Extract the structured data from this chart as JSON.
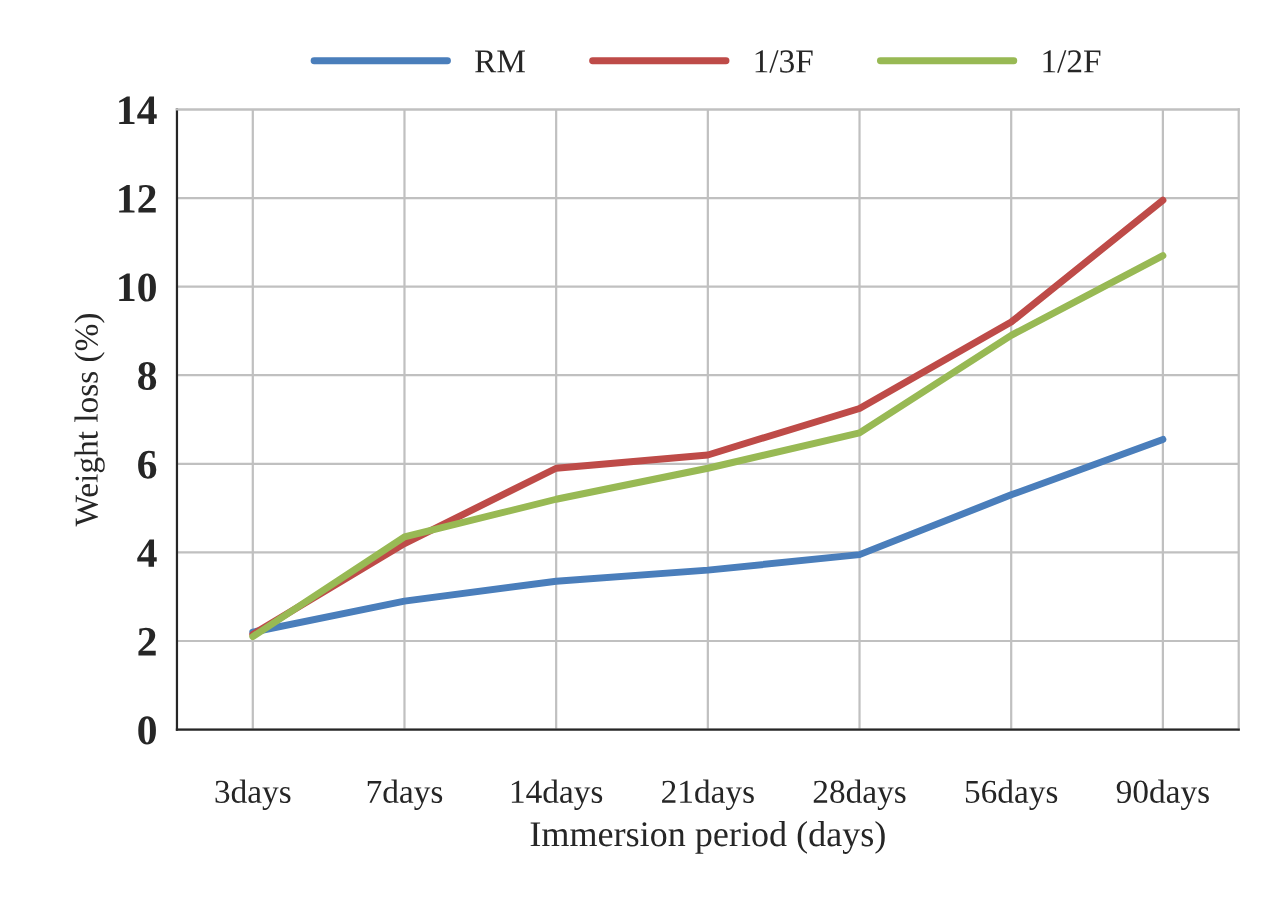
{
  "chart_data": {
    "type": "line",
    "xlabel": "Immersion period (days)",
    "ylabel": "Weight loss (%)",
    "categories": [
      "3days",
      "7days",
      "14days",
      "21days",
      "28days",
      "56days",
      "90days"
    ],
    "series": [
      {
        "name": "RM",
        "color": "#4a7ebb",
        "values": [
          2.2,
          2.9,
          3.35,
          3.6,
          3.95,
          5.3,
          6.55
        ]
      },
      {
        "name": "1/3F",
        "color": "#be4b48",
        "values": [
          2.15,
          4.2,
          5.9,
          6.2,
          7.25,
          9.2,
          11.95
        ]
      },
      {
        "name": "1/2F",
        "color": "#98b954",
        "values": [
          2.1,
          4.35,
          5.2,
          5.9,
          6.7,
          8.9,
          10.7
        ]
      }
    ],
    "ylim": [
      0,
      14
    ],
    "yticks": [
      0,
      2,
      4,
      6,
      8,
      10,
      12,
      14
    ],
    "grid": true,
    "legend": "top",
    "marker": "none",
    "line_style": "solid"
  }
}
